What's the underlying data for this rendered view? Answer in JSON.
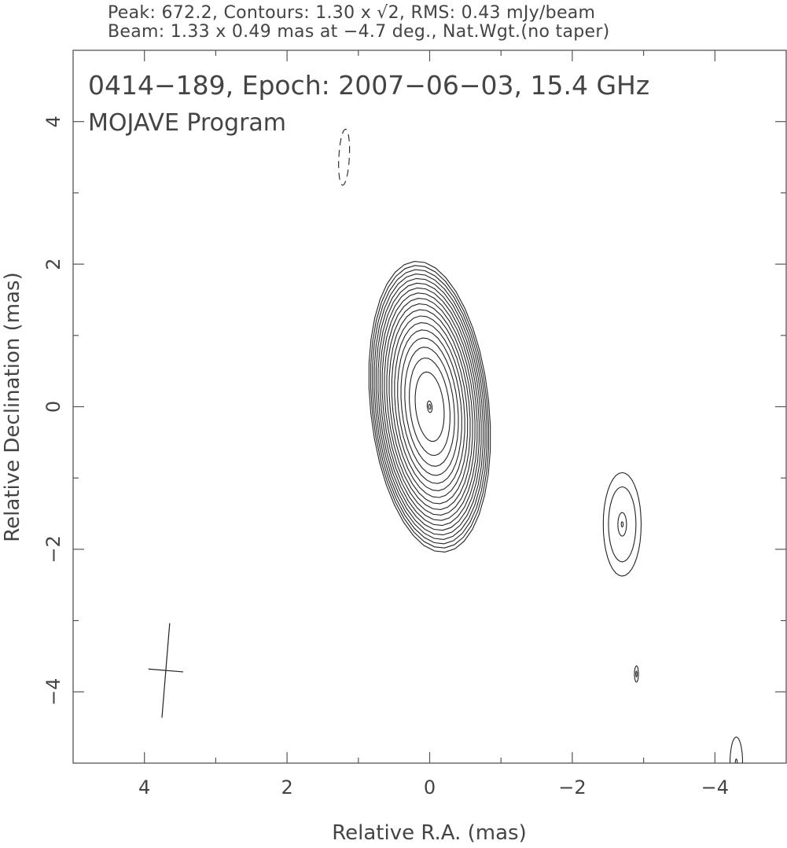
{
  "header": {
    "line1": "Peak: 672.2, Contours: 1.30 x √2, RMS: 0.43 mJy/beam",
    "line2": "Beam: 1.33 x 0.49 mas at −4.7 deg., Nat.Wgt.(no taper)"
  },
  "chart_data": {
    "type": "contour",
    "title": "0414−189, Epoch: 2007−06−03, 15.4 GHz",
    "subtitle": "MOJAVE Program",
    "xlabel": "Relative R.A. (mas)",
    "ylabel": "Relative Declination (mas)",
    "xlim": [
      5,
      -5
    ],
    "ylim": [
      -5,
      5
    ],
    "x_ticks": [
      4,
      2,
      0,
      -2,
      -4
    ],
    "y_ticks": [
      4,
      2,
      0,
      -2,
      -4
    ],
    "x_tick_labels": [
      "4",
      "2",
      "0",
      "−2",
      "−4"
    ],
    "y_tick_labels": [
      "4",
      "2",
      "0",
      "−2",
      "−4"
    ],
    "grid": false,
    "contours": {
      "base_mJy": 1.3,
      "factor": 1.41421356,
      "peak_mJy": 672.2,
      "rms_mJy": 0.43
    },
    "beam": {
      "major_mas": 1.33,
      "minor_mas": 0.49,
      "pa_deg": -4.7,
      "ra": 3.7,
      "dec": -3.7
    },
    "components": [
      {
        "ra": 0.0,
        "dec": 0.0,
        "peak_mJy": 672.2,
        "sigma_ra": 0.235,
        "sigma_dec": 0.58,
        "pa_deg": -6
      },
      {
        "ra": -2.7,
        "dec": -1.65,
        "peak_mJy": 2.7,
        "sigma_ra": 0.22,
        "sigma_dec": 0.6,
        "pa_deg": 0
      },
      {
        "ra": -2.9,
        "dec": -3.75,
        "peak_mJy": 1.32,
        "sigma_ra": 0.16,
        "sigma_dec": 0.65,
        "pa_deg": 0
      },
      {
        "ra": -4.3,
        "dec": -5.0,
        "peak_mJy": 1.4,
        "sigma_ra": 0.23,
        "sigma_dec": 0.95,
        "pa_deg": 0
      }
    ],
    "negative_components": [
      {
        "ra": 1.2,
        "dec": 3.5,
        "peak_mJy": -1.34,
        "sigma_ra": 0.3,
        "sigma_dec": 1.6,
        "pa_deg": 3
      }
    ]
  }
}
